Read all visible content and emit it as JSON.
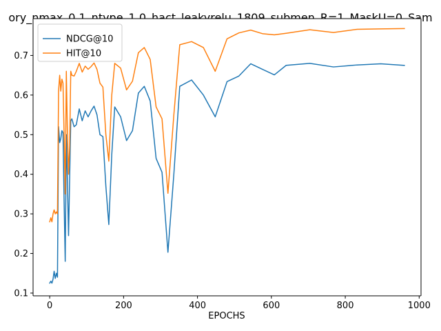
{
  "chart_data": {
    "type": "line",
    "title": "ory_nmax_0.1_ntype_1.0_hact_leakyrelu_1809_submen_R=1_MaskU=0_Sam",
    "xlabel": "EPOCHS",
    "ylabel": "",
    "xlim": [
      -45,
      1005
    ],
    "ylim": [
      0.093,
      0.793
    ],
    "xticks": [
      0,
      200,
      400,
      600,
      800,
      1000
    ],
    "yticks": [
      0.1,
      0.2,
      0.3,
      0.4,
      0.5,
      0.6,
      0.7
    ],
    "grid": false,
    "legend_position": "top-left",
    "series": [
      {
        "name": "NDCG@10",
        "color": "#1f77b4",
        "x": [
          0,
          3,
          6,
          9,
          12,
          15,
          18,
          21,
          24,
          27,
          30,
          33,
          36,
          39,
          42,
          45,
          48,
          51,
          54,
          57,
          60,
          66,
          72,
          80,
          88,
          96,
          104,
          112,
          120,
          128,
          136,
          144,
          152,
          160,
          168,
          176,
          192,
          208,
          224,
          240,
          256,
          272,
          288,
          304,
          320,
          336,
          352,
          384,
          416,
          448,
          480,
          512,
          544,
          576,
          608,
          640,
          704,
          768,
          832,
          896,
          960
        ],
        "y": [
          0.125,
          0.13,
          0.125,
          0.135,
          0.155,
          0.137,
          0.15,
          0.14,
          0.52,
          0.48,
          0.49,
          0.51,
          0.505,
          0.33,
          0.18,
          0.5,
          0.38,
          0.245,
          0.39,
          0.535,
          0.54,
          0.52,
          0.525,
          0.565,
          0.535,
          0.56,
          0.545,
          0.56,
          0.572,
          0.55,
          0.5,
          0.495,
          0.37,
          0.273,
          0.45,
          0.57,
          0.545,
          0.485,
          0.51,
          0.605,
          0.622,
          0.585,
          0.44,
          0.405,
          0.203,
          0.4,
          0.622,
          0.638,
          0.6,
          0.545,
          0.634,
          0.648,
          0.679,
          0.665,
          0.651,
          0.675,
          0.68,
          0.671,
          0.676,
          0.679,
          0.675
        ]
      },
      {
        "name": "HIT@10",
        "color": "#ff7f0e",
        "x": [
          0,
          3,
          6,
          9,
          12,
          15,
          18,
          21,
          24,
          27,
          30,
          33,
          36,
          39,
          42,
          45,
          48,
          51,
          54,
          57,
          60,
          66,
          72,
          80,
          88,
          96,
          104,
          112,
          120,
          128,
          136,
          144,
          152,
          160,
          168,
          176,
          192,
          208,
          224,
          240,
          256,
          272,
          288,
          304,
          320,
          336,
          352,
          384,
          416,
          448,
          480,
          512,
          544,
          576,
          608,
          640,
          704,
          768,
          832,
          896,
          960
        ],
        "y": [
          0.28,
          0.29,
          0.28,
          0.3,
          0.31,
          0.3,
          0.305,
          0.3,
          0.61,
          0.65,
          0.61,
          0.64,
          0.63,
          0.5,
          0.35,
          0.66,
          0.5,
          0.4,
          0.47,
          0.66,
          0.65,
          0.648,
          0.66,
          0.68,
          0.658,
          0.673,
          0.665,
          0.672,
          0.681,
          0.665,
          0.63,
          0.62,
          0.5,
          0.433,
          0.6,
          0.68,
          0.668,
          0.613,
          0.635,
          0.707,
          0.72,
          0.69,
          0.57,
          0.54,
          0.352,
          0.55,
          0.727,
          0.735,
          0.72,
          0.66,
          0.742,
          0.757,
          0.764,
          0.755,
          0.752,
          0.756,
          0.765,
          0.758,
          0.766,
          0.767,
          0.768
        ]
      }
    ]
  }
}
